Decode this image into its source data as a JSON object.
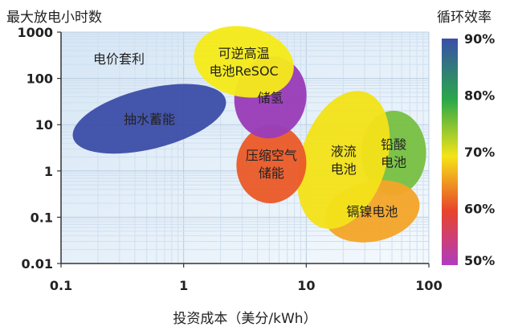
{
  "chart_data": {
    "type": "scatter",
    "xlabel": "投资成本（美分/kWh）",
    "ylabel": "最大放电小时数",
    "x_scale": "log",
    "y_scale": "log",
    "xlim": [
      0.1,
      100
    ],
    "ylim": [
      0.01,
      1000
    ],
    "x_ticks": [
      "0.1",
      "1",
      "10",
      "100"
    ],
    "y_ticks": [
      "0.01",
      "0.1",
      "1",
      "10",
      "100",
      "1000"
    ],
    "grid": true,
    "region_label": "电价套利",
    "colorbar": {
      "title": "循环效率",
      "ticks": [
        "90%",
        "80%",
        "70%",
        "60%",
        "50%"
      ],
      "colors": [
        "#3a4fa8",
        "#2aa84a",
        "#f5e418",
        "#e8442a",
        "#b03cc0"
      ]
    },
    "series": [
      {
        "label": "抽水蓄能",
        "x": [
          0.12,
          2.3
        ],
        "y": [
          3,
          60
        ],
        "efficiency": 0.8,
        "color": "#3d4fa8",
        "rotate": -14
      },
      {
        "label": "铅酸电池",
        "x": [
          28,
          95
        ],
        "y": [
          0.3,
          20
        ],
        "efficiency": 0.8,
        "color": "#78c044",
        "rotate": 0
      },
      {
        "label": "镉镍电池",
        "x": [
          14,
          85
        ],
        "y": [
          0.03,
          0.6
        ],
        "efficiency": 0.65,
        "color": "#f2a52a",
        "rotate": -12
      },
      {
        "label": "液流电池",
        "x": [
          9,
          45
        ],
        "y": [
          0.05,
          60
        ],
        "efficiency": 0.72,
        "color": "#f3e21a",
        "rotate": 18
      },
      {
        "label": "压缩空气储能",
        "x": [
          2.7,
          10
        ],
        "y": [
          0.2,
          10
        ],
        "efficiency": 0.62,
        "color": "#ea5b2a",
        "rotate": 8
      },
      {
        "label": "储氢",
        "x": [
          2.6,
          10
        ],
        "y": [
          5,
          300
        ],
        "efficiency": 0.52,
        "color": "#9a3cb8",
        "rotate": 12
      },
      {
        "label": "可逆高温电池ReSOC",
        "x": [
          1.2,
          8
        ],
        "y": [
          40,
          1300
        ],
        "efficiency": 0.7,
        "color": "#f5ea1a",
        "rotate": 12
      }
    ]
  }
}
